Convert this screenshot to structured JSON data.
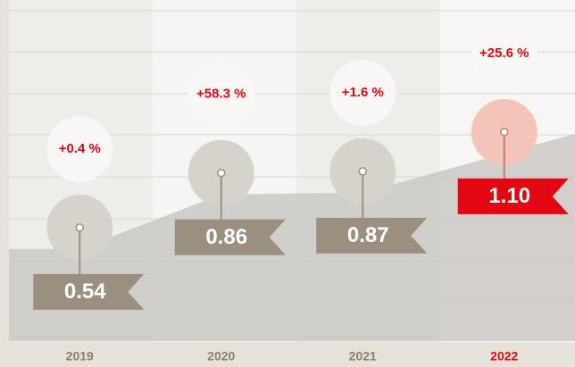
{
  "chart_data": {
    "type": "area",
    "categories": [
      "2019",
      "2020",
      "2021",
      "2022"
    ],
    "values": [
      0.54,
      0.86,
      0.87,
      1.1
    ],
    "value_labels": [
      "0.54",
      "0.86",
      "0.87",
      "1.10"
    ],
    "growth_labels": [
      "+0.4 %",
      "+58.3 %",
      "+1.6 %",
      "+25.6 %"
    ],
    "colors": [
      "#9b907f",
      "#9b907f",
      "#9b907f",
      "#e30613"
    ],
    "ylim": [
      0,
      2.0
    ]
  }
}
